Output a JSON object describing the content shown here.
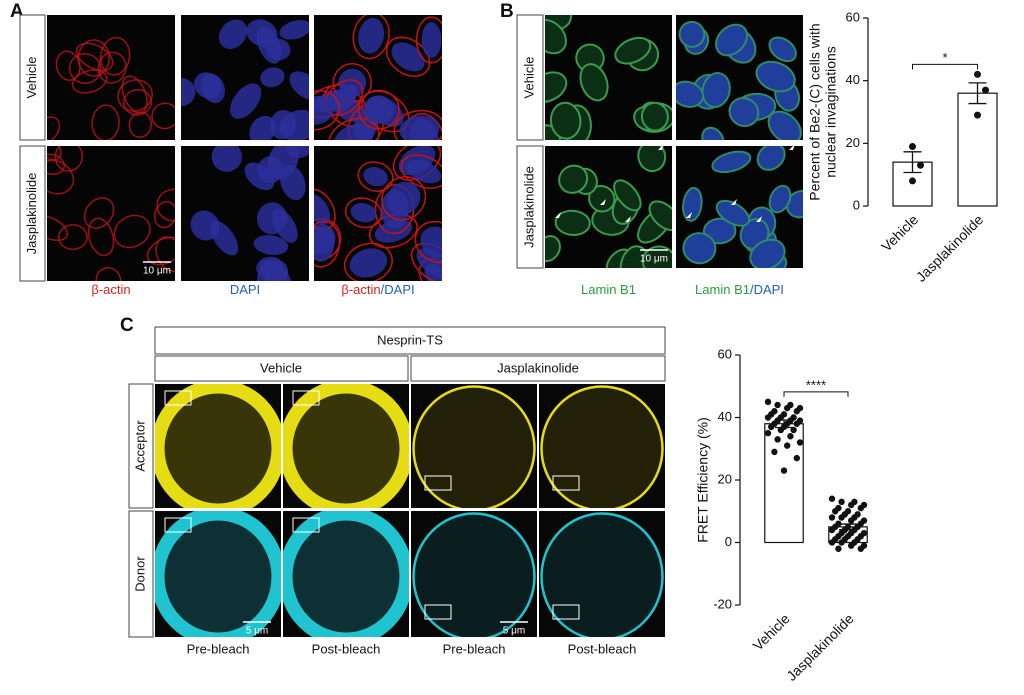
{
  "panel_labels": [
    "A",
    "B",
    "C"
  ],
  "panel_a": {
    "rows": [
      "Vehicle",
      "Jasplakinolide"
    ],
    "columns": [
      [
        "β-actin"
      ],
      [
        "DAPI"
      ],
      [
        "β-actin",
        "/DAPI"
      ]
    ],
    "scale_bar": "10 μm"
  },
  "panel_b": {
    "rows": [
      "Vehicle",
      "Jasplakinolide"
    ],
    "columns": [
      [
        "Lamin B1"
      ],
      [
        "Lamin B1",
        "/DAPI"
      ]
    ],
    "scale_bar": "10 μm"
  },
  "panel_c": {
    "header": "Nesprin-TS",
    "groups": [
      "Vehicle",
      "Jasplakinolide"
    ],
    "rows": [
      "Acceptor",
      "Donor"
    ],
    "columns": [
      "Pre-bleach",
      "Post-bleach",
      "Pre-bleach",
      "Post-bleach"
    ],
    "scale_bars": [
      "5 μm",
      "5 μm"
    ]
  },
  "chart_data": [
    {
      "type": "bar",
      "ylabel": [
        "Percent of Be2-(C) cells with",
        "nuclear invaginations"
      ],
      "categories": [
        "Vehicle",
        "Jasplakinolide"
      ],
      "values": [
        14,
        36
      ],
      "errors": [
        3.3,
        3.3
      ],
      "points": [
        [
          19,
          13,
          8
        ],
        [
          42,
          37,
          29
        ]
      ],
      "color": "#ffffff",
      "ylim": [
        0,
        60
      ],
      "yticks": [
        0,
        20,
        40,
        60
      ],
      "significance": "*"
    },
    {
      "type": "bar",
      "ylabel": [
        "FRET Efficiency (%)"
      ],
      "categories": [
        "Vehicle",
        "Jasplakinolide"
      ],
      "values": [
        38,
        5
      ],
      "errors": [
        1.2,
        0.9
      ],
      "points": [
        [
          45,
          44,
          44,
          43,
          43,
          42,
          42,
          41,
          41,
          40,
          40,
          40,
          39,
          39,
          39,
          38,
          38,
          38,
          37,
          37,
          36,
          36,
          35,
          34,
          33,
          32,
          31,
          29,
          27,
          23
        ],
        [
          14,
          13,
          13,
          12,
          12,
          11,
          11,
          10,
          10,
          9,
          9,
          8,
          8,
          8,
          7,
          7,
          6,
          6,
          5,
          5,
          5,
          4,
          4,
          4,
          3,
          3,
          3,
          2,
          2,
          2,
          1,
          1,
          1,
          0,
          0,
          0,
          -1,
          -1,
          -2,
          -2
        ]
      ],
      "color": "#ffffff",
      "ylim": [
        -20,
        60
      ],
      "yticks": [
        -20,
        0,
        20,
        40,
        60
      ],
      "significance": "****"
    }
  ]
}
